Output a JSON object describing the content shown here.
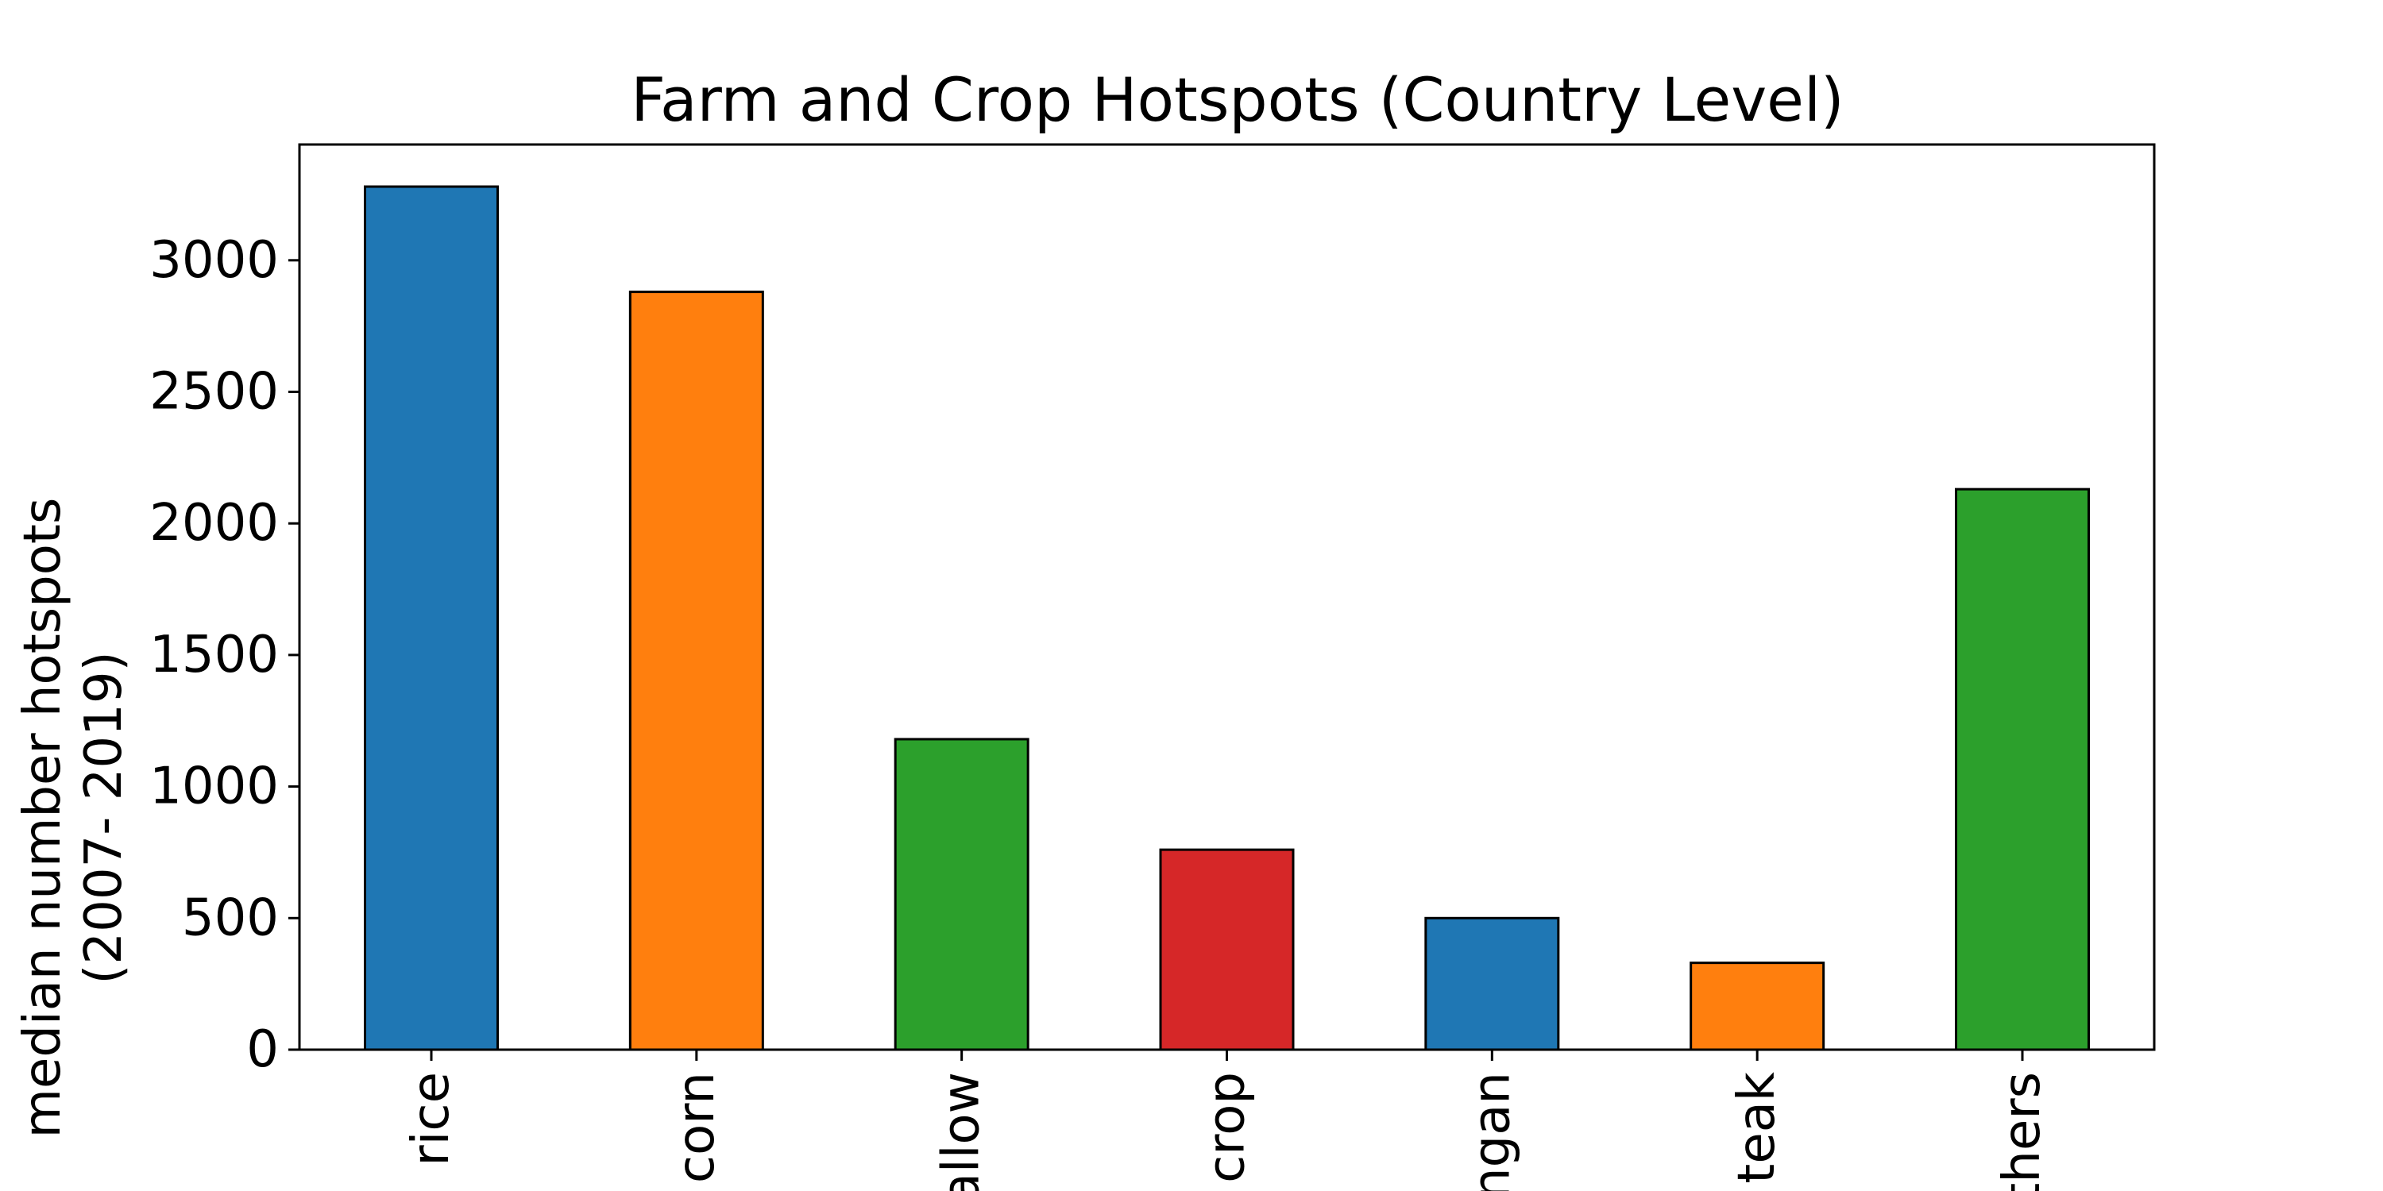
{
  "chart_data": {
    "type": "bar",
    "title": "Farm and Crop Hotspots (Country Level)",
    "xlabel": "",
    "ylabel": [
      "median number hotspots",
      "(2007- 2019)"
    ],
    "categories": [
      "rice",
      "corn",
      "fallow",
      "crop",
      "longan",
      "teak",
      "others"
    ],
    "values": [
      3280,
      2880,
      1180,
      760,
      500,
      330,
      2130
    ],
    "ylim": [
      0,
      3440
    ],
    "yticks": [
      0,
      500,
      1000,
      1500,
      2000,
      2500,
      3000
    ],
    "colors": [
      "#1f77b4",
      "#ff7f0e",
      "#2ca02c",
      "#d62728",
      "#1f77b4",
      "#ff7f0e",
      "#2ca02c"
    ],
    "edge_color": "#000000",
    "grid": false,
    "legend": "none"
  }
}
